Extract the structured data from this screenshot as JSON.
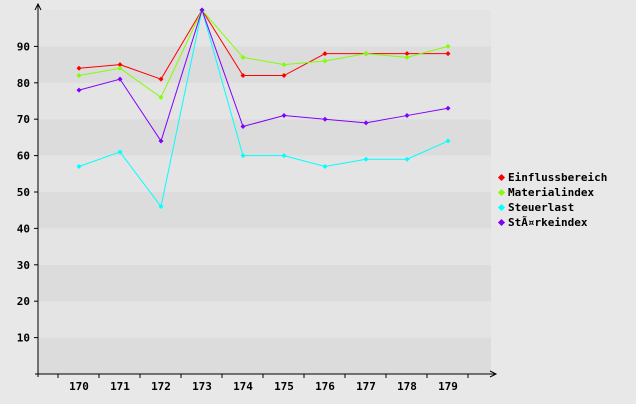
{
  "chart_data": {
    "type": "line",
    "categories": [
      "170",
      "171",
      "172",
      "173",
      "174",
      "175",
      "176",
      "177",
      "178",
      "179"
    ],
    "ylim": [
      0,
      100
    ],
    "yticks": [
      10,
      20,
      30,
      40,
      50,
      60,
      70,
      80,
      90
    ],
    "grid": "horizontal bands",
    "legend_placement": "right",
    "series": [
      {
        "name": "Einflussbereich",
        "color": "#ff0000",
        "values": [
          84,
          85,
          81,
          100,
          82,
          82,
          88,
          88,
          88,
          88
        ]
      },
      {
        "name": "Materialindex",
        "color": "#80ff00",
        "values": [
          82,
          84,
          76,
          100,
          87,
          85,
          86,
          88,
          87,
          90
        ]
      },
      {
        "name": "Steuerlast",
        "color": "#00ffff",
        "values": [
          57,
          61,
          46,
          100,
          60,
          60,
          57,
          59,
          59,
          64
        ]
      },
      {
        "name": "StÃ¤rkeindex",
        "color": "#8000ff",
        "values": [
          78,
          81,
          64,
          100,
          68,
          71,
          70,
          69,
          71,
          73
        ]
      }
    ]
  }
}
